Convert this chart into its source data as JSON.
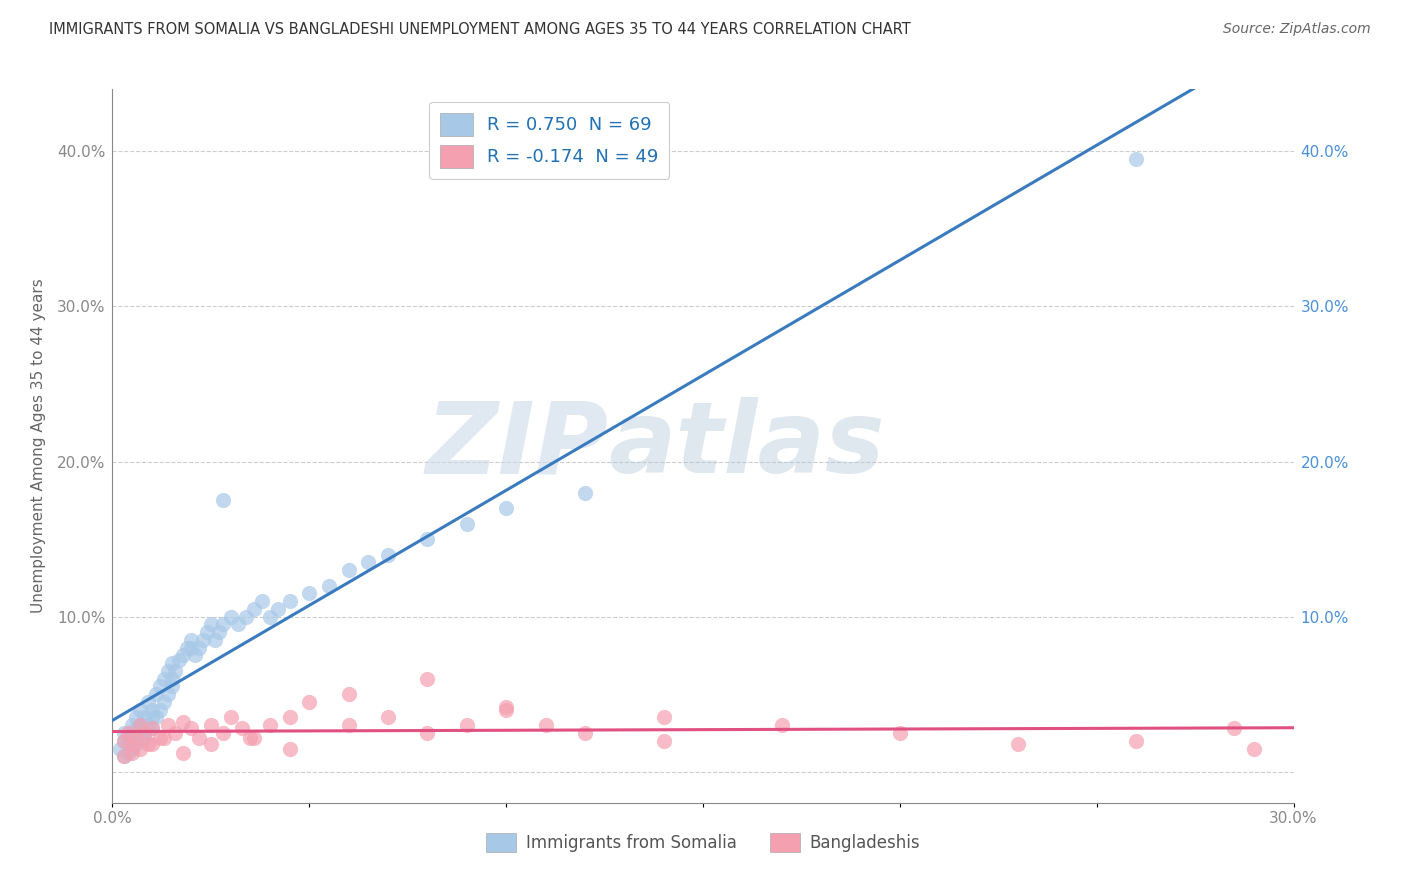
{
  "title": "IMMIGRANTS FROM SOMALIA VS BANGLADESHI UNEMPLOYMENT AMONG AGES 35 TO 44 YEARS CORRELATION CHART",
  "source": "Source: ZipAtlas.com",
  "ylabel": "Unemployment Among Ages 35 to 44 years",
  "xlim": [
    0.0,
    0.3
  ],
  "ylim": [
    -0.02,
    0.44
  ],
  "x_ticks": [
    0.0,
    0.05,
    0.1,
    0.15,
    0.2,
    0.25,
    0.3
  ],
  "y_ticks": [
    0.0,
    0.1,
    0.2,
    0.3,
    0.4
  ],
  "somalia_color": "#a8c8e8",
  "bangladesh_color": "#f4a0b0",
  "somalia_line_color": "#3a7bbf",
  "bangladesh_line_color": "#e05080",
  "r_somalia": 0.75,
  "n_somalia": 69,
  "r_bangladesh": -0.174,
  "n_bangladesh": 49,
  "watermark_zip": "ZIP",
  "watermark_atlas": "atlas",
  "background_color": "#ffffff",
  "grid_color": "#c8c8c8",
  "somalia_scatter_x": [
    0.002,
    0.003,
    0.003,
    0.004,
    0.004,
    0.005,
    0.005,
    0.005,
    0.006,
    0.006,
    0.006,
    0.007,
    0.007,
    0.007,
    0.008,
    0.008,
    0.009,
    0.009,
    0.01,
    0.01,
    0.011,
    0.011,
    0.012,
    0.012,
    0.013,
    0.013,
    0.014,
    0.014,
    0.015,
    0.015,
    0.016,
    0.017,
    0.018,
    0.019,
    0.02,
    0.021,
    0.022,
    0.023,
    0.024,
    0.025,
    0.026,
    0.027,
    0.028,
    0.03,
    0.032,
    0.034,
    0.036,
    0.038,
    0.04,
    0.042,
    0.045,
    0.05,
    0.055,
    0.06,
    0.065,
    0.07,
    0.08,
    0.09,
    0.1,
    0.12,
    0.003,
    0.004,
    0.006,
    0.008,
    0.01,
    0.015,
    0.02,
    0.028,
    0.26
  ],
  "somalia_scatter_y": [
    0.015,
    0.02,
    0.025,
    0.018,
    0.022,
    0.015,
    0.025,
    0.03,
    0.02,
    0.028,
    0.035,
    0.022,
    0.03,
    0.04,
    0.025,
    0.035,
    0.03,
    0.045,
    0.028,
    0.04,
    0.035,
    0.05,
    0.04,
    0.055,
    0.045,
    0.06,
    0.05,
    0.065,
    0.055,
    0.07,
    0.065,
    0.072,
    0.075,
    0.08,
    0.085,
    0.075,
    0.08,
    0.085,
    0.09,
    0.095,
    0.085,
    0.09,
    0.095,
    0.1,
    0.095,
    0.1,
    0.105,
    0.11,
    0.1,
    0.105,
    0.11,
    0.115,
    0.12,
    0.13,
    0.135,
    0.14,
    0.15,
    0.16,
    0.17,
    0.18,
    0.01,
    0.012,
    0.018,
    0.022,
    0.035,
    0.06,
    0.08,
    0.175,
    0.395
  ],
  "bangladesh_scatter_x": [
    0.003,
    0.004,
    0.005,
    0.006,
    0.007,
    0.008,
    0.009,
    0.01,
    0.012,
    0.014,
    0.016,
    0.018,
    0.02,
    0.022,
    0.025,
    0.028,
    0.03,
    0.033,
    0.036,
    0.04,
    0.045,
    0.05,
    0.06,
    0.07,
    0.08,
    0.09,
    0.1,
    0.11,
    0.12,
    0.14,
    0.003,
    0.005,
    0.007,
    0.01,
    0.013,
    0.018,
    0.025,
    0.035,
    0.045,
    0.06,
    0.08,
    0.1,
    0.14,
    0.17,
    0.2,
    0.23,
    0.26,
    0.285,
    0.29
  ],
  "bangladesh_scatter_y": [
    0.02,
    0.025,
    0.018,
    0.022,
    0.03,
    0.025,
    0.018,
    0.028,
    0.022,
    0.03,
    0.025,
    0.032,
    0.028,
    0.022,
    0.03,
    0.025,
    0.035,
    0.028,
    0.022,
    0.03,
    0.035,
    0.045,
    0.03,
    0.035,
    0.025,
    0.03,
    0.04,
    0.03,
    0.025,
    0.035,
    0.01,
    0.012,
    0.015,
    0.018,
    0.022,
    0.012,
    0.018,
    0.022,
    0.015,
    0.05,
    0.06,
    0.042,
    0.02,
    0.03,
    0.025,
    0.018,
    0.02,
    0.028,
    0.015
  ]
}
